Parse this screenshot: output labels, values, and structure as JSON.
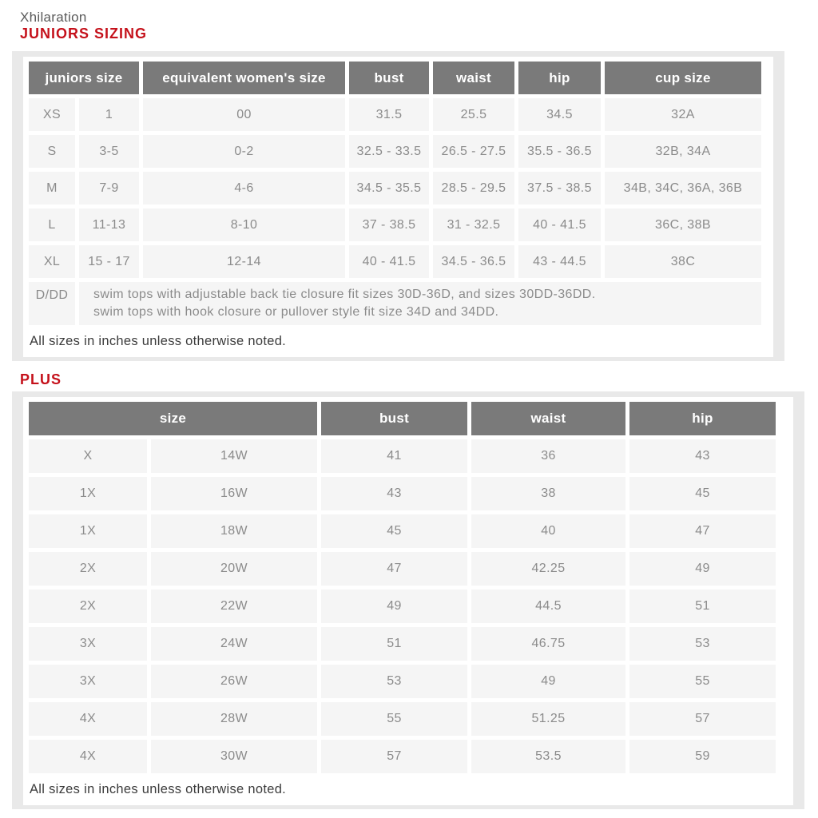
{
  "page": {
    "brand": "Xhilaration",
    "juniors_heading": "JUNIORS SIZING",
    "plus_heading": "PLUS",
    "juniors_note": "All sizes in inches unless otherwise noted.",
    "plus_note": "All sizes in inches unless otherwise noted."
  },
  "colors": {
    "heading_red": "#c5111b",
    "table_header_bg": "#7a7a7a",
    "table_header_text": "#ffffff",
    "cell_bg": "#f5f5f5",
    "cell_text": "#8b8b8b",
    "panel_bg": "#e9e9e9"
  },
  "juniors_table": {
    "headers": {
      "size": "juniors size",
      "womens": "equivalent women's size",
      "bust": "bust",
      "waist": "waist",
      "hip": "hip",
      "cup": "cup size"
    },
    "rows": [
      {
        "size": "XS",
        "size2": "1",
        "womens": "00",
        "bust": "31.5",
        "waist": "25.5",
        "hip": "34.5",
        "cup": "32A"
      },
      {
        "size": "S",
        "size2": "3-5",
        "womens": "0-2",
        "bust": "32.5 - 33.5",
        "waist": "26.5 - 27.5",
        "hip": "35.5 - 36.5",
        "cup": "32B, 34A"
      },
      {
        "size": "M",
        "size2": "7-9",
        "womens": "4-6",
        "bust": "34.5 - 35.5",
        "waist": "28.5 - 29.5",
        "hip": "37.5 - 38.5",
        "cup": "34B, 34C, 36A, 36B"
      },
      {
        "size": "L",
        "size2": "11-13",
        "womens": "8-10",
        "bust": "37 - 38.5",
        "waist": "31 - 32.5",
        "hip": "40 - 41.5",
        "cup": "36C, 38B"
      },
      {
        "size": "XL",
        "size2": "15 - 17",
        "womens": "12-14",
        "bust": "40 - 41.5",
        "waist": "34.5 - 36.5",
        "hip": "43 - 44.5",
        "cup": "38C"
      }
    ],
    "ddd": {
      "label": "D/DD",
      "line1": "swim tops with adjustable back tie closure fit sizes 30D-36D, and sizes 30DD-36DD.",
      "line2": "swim tops with hook closure or pullover style fit size 34D and 34DD."
    }
  },
  "plus_table": {
    "headers": {
      "size": "size",
      "bust": "bust",
      "waist": "waist",
      "hip": "hip"
    },
    "rows": [
      {
        "size1": "X",
        "size2": "14W",
        "bust": "41",
        "waist": "36",
        "hip": "43"
      },
      {
        "size1": "1X",
        "size2": "16W",
        "bust": "43",
        "waist": "38",
        "hip": "45"
      },
      {
        "size1": "1X",
        "size2": "18W",
        "bust": "45",
        "waist": "40",
        "hip": "47"
      },
      {
        "size1": "2X",
        "size2": "20W",
        "bust": "47",
        "waist": "42.25",
        "hip": "49"
      },
      {
        "size1": "2X",
        "size2": "22W",
        "bust": "49",
        "waist": "44.5",
        "hip": "51"
      },
      {
        "size1": "3X",
        "size2": "24W",
        "bust": "51",
        "waist": "46.75",
        "hip": "53"
      },
      {
        "size1": "3X",
        "size2": "26W",
        "bust": "53",
        "waist": "49",
        "hip": "55"
      },
      {
        "size1": "4X",
        "size2": "28W",
        "bust": "55",
        "waist": "51.25",
        "hip": "57"
      },
      {
        "size1": "4X",
        "size2": "30W",
        "bust": "57",
        "waist": "53.5",
        "hip": "59"
      }
    ]
  }
}
